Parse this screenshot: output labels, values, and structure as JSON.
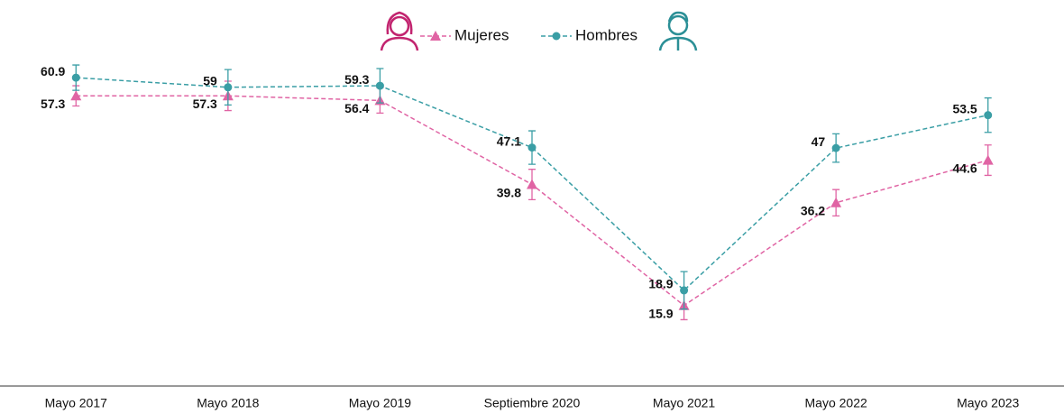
{
  "chart_data": {
    "type": "line",
    "categories": [
      "Mayo 2017",
      "Mayo 2018",
      "Mayo 2019",
      "Septiembre 2020",
      "Mayo 2021",
      "Mayo 2022",
      "Mayo 2023"
    ],
    "series": [
      {
        "name": "Mujeres",
        "color": "#e064a4",
        "marker": "triangle",
        "values": [
          57.3,
          57.3,
          56.4,
          39.8,
          15.9,
          36.2,
          44.6
        ],
        "errors": [
          2.0,
          2.9,
          2.5,
          3.0,
          2.8,
          2.6,
          3.0
        ]
      },
      {
        "name": "Hombres",
        "color": "#3a9ea5",
        "marker": "circle",
        "values": [
          60.9,
          59.0,
          59.3,
          47.1,
          18.9,
          47.0,
          53.5
        ],
        "errors": [
          2.5,
          3.5,
          3.4,
          3.3,
          3.7,
          2.8,
          3.4
        ]
      }
    ],
    "ylim": [
      0,
      70
    ],
    "legend": "top"
  }
}
